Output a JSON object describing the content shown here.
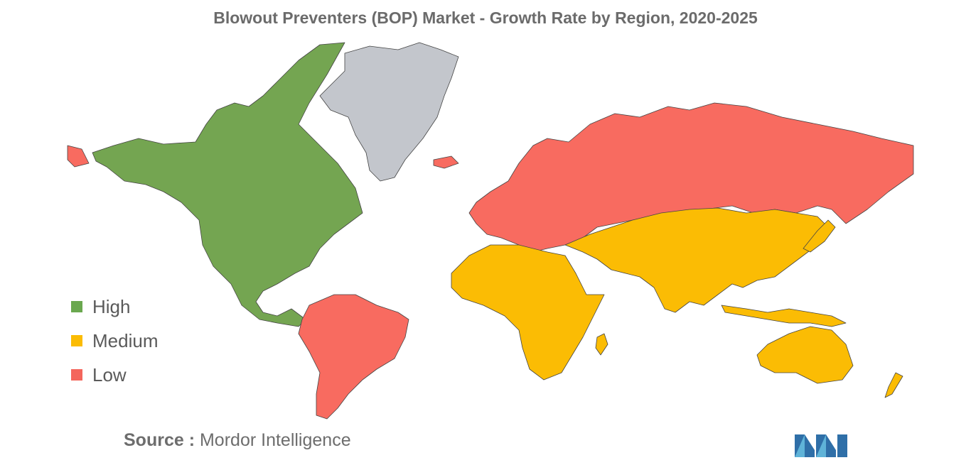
{
  "title": "Blowout Preventers (BOP) Market - Growth Rate by Region, 2020-2025",
  "legend": [
    {
      "label": "High",
      "color": "#6aa84f"
    },
    {
      "label": "Medium",
      "color": "#fbbc04"
    },
    {
      "label": "Low",
      "color": "#f4665c"
    }
  ],
  "colors": {
    "high": "#74a551",
    "medium": "#fbbc04",
    "low": "#f86b60",
    "no_data": "#c3c6cc"
  },
  "regions": {
    "north_america": "High",
    "south_america": "Low",
    "europe": "Low",
    "russia": "Low",
    "africa": "Medium",
    "middle_east_asia": "Medium",
    "southeast_asia": "Medium",
    "australia": "Medium",
    "greenland": "No data"
  },
  "source": {
    "prefix": "Source :",
    "name": "Mordor Intelligence"
  }
}
